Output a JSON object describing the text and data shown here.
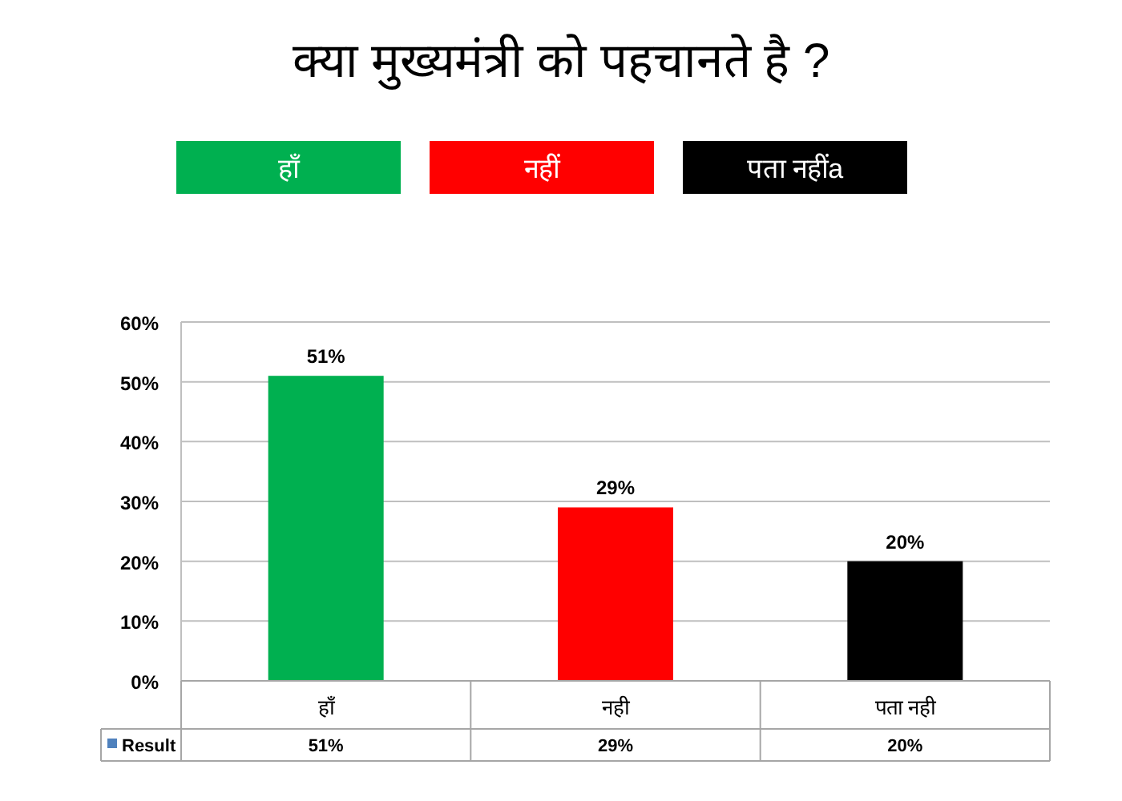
{
  "chart_data": {
    "type": "bar",
    "title": "क्या मुख्यमंत्री को पहचानते है ?",
    "annotations": [
      "हाँ",
      "नहीं",
      "पता नहींa"
    ],
    "categories": [
      "हॉं",
      "नही",
      "पता नही"
    ],
    "series": [
      {
        "name": "Result",
        "color": "#4f81bd",
        "colors": [
          "#00b050",
          "#ff0000",
          "#000000"
        ],
        "values": [
          51,
          29,
          20
        ],
        "value_labels": [
          "51%",
          "29%",
          "20%"
        ]
      }
    ],
    "ylim": [
      0,
      60
    ],
    "yticks": [
      {
        "value": 0,
        "label": "0%"
      },
      {
        "value": 10,
        "label": "10%"
      },
      {
        "value": 20,
        "label": "20%"
      },
      {
        "value": 30,
        "label": "30%"
      },
      {
        "value": 40,
        "label": "40%"
      },
      {
        "value": 50,
        "label": "50%"
      },
      {
        "value": 60,
        "label": "60%"
      }
    ],
    "grid": "y",
    "legend": "bottom"
  }
}
